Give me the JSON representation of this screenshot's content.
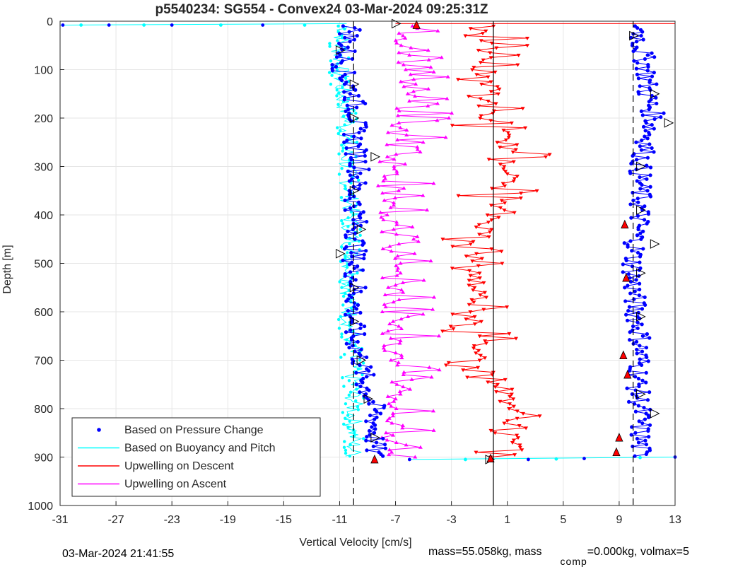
{
  "chart_data": {
    "type": "scatter",
    "title": "p5540234: SG554 - Convex24 03-Mar-2024 09:25:31Z",
    "xlabel": "Vertical Velocity [cm/s]",
    "ylabel": "Depth [m]",
    "xlim": [
      -31,
      13
    ],
    "ylim": [
      0,
      1000
    ],
    "y_reversed": true,
    "grid": true,
    "x_ticks": [
      -31,
      -27,
      -23,
      -19,
      -15,
      -11,
      -7,
      -3,
      1,
      5,
      9,
      13
    ],
    "y_ticks": [
      0,
      100,
      200,
      300,
      400,
      500,
      600,
      700,
      800,
      900,
      1000
    ],
    "legend_position": "bottom-left",
    "legend": [
      {
        "label": "Based on Pressure Change",
        "color": "#0000ff",
        "style": "dot"
      },
      {
        "label": "Based on Buoyancy and Pitch",
        "color": "#00ffff",
        "style": "line"
      },
      {
        "label": "Upwelling on Descent",
        "color": "#ff0000",
        "style": "line"
      },
      {
        "label": "Upwelling on Ascent",
        "color": "#ff00ff",
        "style": "line"
      }
    ],
    "reference_lines": [
      {
        "x": -10.0,
        "style": "dashed",
        "color": "#000000"
      },
      {
        "x": 0.0,
        "style": "solid",
        "color": "#000000"
      },
      {
        "x": 10.0,
        "style": "dashed",
        "color": "#000000"
      }
    ],
    "series": [
      {
        "key": "pressure_descent",
        "color": "#0000ff",
        "kind": "dots",
        "depth": [
          5,
          50,
          100,
          150,
          200,
          250,
          300,
          350,
          400,
          450,
          500,
          550,
          600,
          650,
          700,
          750,
          800,
          850,
          900
        ],
        "values": [
          -10,
          -10.5,
          -10.8,
          -10,
          -9.8,
          -10,
          -9.5,
          -10,
          -9.8,
          -9.8,
          -10,
          -9.8,
          -10,
          -10,
          -9.5,
          -9.2,
          -8.5,
          -8.5,
          -8.5
        ]
      },
      {
        "key": "buoyancy_descent",
        "color": "#00ffff",
        "kind": "line",
        "depth": [
          5,
          50,
          100,
          150,
          200,
          250,
          300,
          350,
          400,
          450,
          500,
          550,
          600,
          650,
          700,
          750,
          800,
          850,
          900
        ],
        "values": [
          -10.5,
          -11,
          -11,
          -10.8,
          -10.5,
          -10.5,
          -10.5,
          -10.3,
          -10.2,
          -10.2,
          -10.2,
          -10.3,
          -10.3,
          -10.2,
          -10.1,
          -10,
          -10,
          -10,
          -10
        ]
      },
      {
        "key": "upwelling_ascent",
        "color": "#ff00ff",
        "kind": "line",
        "depth": [
          5,
          50,
          100,
          150,
          200,
          250,
          300,
          350,
          400,
          450,
          500,
          550,
          600,
          650,
          700,
          750,
          800,
          850,
          900
        ],
        "values": [
          -7,
          -6.5,
          -6,
          -6,
          -6.5,
          -7,
          -7.5,
          -7.5,
          -7.5,
          -7.5,
          -7.2,
          -7.2,
          -7.2,
          -7.2,
          -7.2,
          -7,
          -7,
          -7.2,
          -7.5
        ]
      },
      {
        "key": "upwelling_descent",
        "color": "#ff0000",
        "kind": "line",
        "depth": [
          5,
          50,
          100,
          150,
          200,
          250,
          300,
          350,
          400,
          450,
          500,
          550,
          600,
          650,
          700,
          750,
          800,
          850,
          900
        ],
        "values": [
          0,
          -0.5,
          -0.5,
          -0.3,
          -0.5,
          1,
          1.5,
          0.5,
          0,
          -1,
          -1.5,
          -1,
          -1,
          -1,
          -1,
          0.5,
          1.5,
          1.5,
          1
        ]
      },
      {
        "key": "pressure_ascent",
        "color": "#0000ff",
        "kind": "dots",
        "depth": [
          5,
          50,
          100,
          150,
          200,
          250,
          300,
          350,
          400,
          450,
          500,
          550,
          600,
          650,
          700,
          750,
          800,
          850,
          900
        ],
        "values": [
          10.5,
          10.5,
          11,
          11,
          11.5,
          11,
          10.5,
          10.5,
          10.5,
          10.2,
          10,
          10,
          10.2,
          10.5,
          10.5,
          10.3,
          10.5,
          10.5,
          10.5
        ]
      }
    ],
    "surface_points": {
      "color_dark": "#0000ff",
      "color_light": "#00ffff",
      "upper": {
        "depth": [
          8,
          8,
          8,
          8,
          8,
          8,
          8,
          8
        ],
        "values": [
          -30.8,
          -29.5,
          -27.5,
          -25,
          -23,
          -19.5,
          -16.5,
          -13.5
        ]
      },
      "lower": {
        "depth": [
          905,
          905,
          905,
          904,
          903,
          901,
          900
        ],
        "values": [
          -6,
          -2,
          2.5,
          4.5,
          6.5,
          10.5,
          13
        ]
      }
    },
    "red_markers": {
      "depth": [
        8,
        420,
        530,
        690,
        730,
        860,
        890,
        905,
        903
      ],
      "values": [
        -5.5,
        9.4,
        9.5,
        9.3,
        9.6,
        9.0,
        8.8,
        -8.5,
        -0.2
      ]
    },
    "triangle_markers": {
      "depth": [
        5,
        60,
        130,
        200,
        280,
        350,
        430,
        480,
        550,
        620,
        700,
        780,
        860,
        905,
        30,
        150,
        210,
        300,
        390,
        460,
        520,
        610,
        770,
        810
      ],
      "values": [
        -7,
        -11,
        -10,
        -10,
        -8.5,
        -10,
        -9.5,
        -11,
        -10,
        -10,
        -9.5,
        -9,
        -8.5,
        -0.3,
        10,
        11.5,
        12.5,
        10.5,
        10.5,
        11.5,
        10.5,
        10.5,
        10.5,
        11.5
      ]
    }
  },
  "footer": {
    "timestamp": "03-Mar-2024 21:41:55",
    "mass_text": "mass=55.058kg, mass",
    "comp_subscript": "comp",
    "comp_text": "=0.000kg, volmax=5"
  }
}
